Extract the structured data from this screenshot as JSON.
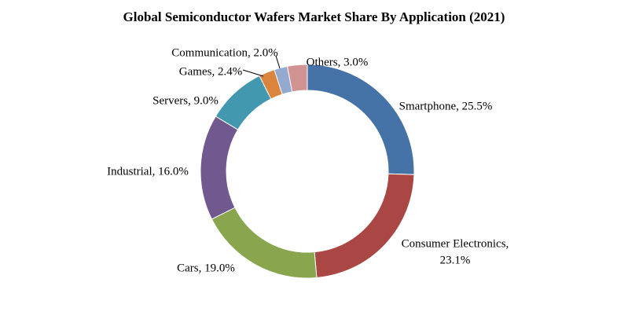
{
  "chart_data": {
    "type": "pie",
    "variant": "donut",
    "title": "Global Semiconductor Wafers Market Share By Application (2021)",
    "start_angle_deg": 0,
    "direction": "clockwise",
    "slices": [
      {
        "name": "Smartphone",
        "value": 25.5,
        "label": "Smartphone, 25.5%",
        "color": "#4572A7"
      },
      {
        "name": "Consumer Electronics",
        "value": 23.1,
        "label": "Consumer Electronics,|23.1%",
        "color": "#AA4643"
      },
      {
        "name": "Cars",
        "value": 19.0,
        "label": "Cars, 19.0%",
        "color": "#89A54E"
      },
      {
        "name": "Industrial",
        "value": 16.0,
        "label": "Industrial, 16.0%",
        "color": "#71588F"
      },
      {
        "name": "Servers",
        "value": 9.0,
        "label": "Servers, 9.0%",
        "color": "#4198AF"
      },
      {
        "name": "Games",
        "value": 2.4,
        "label": "Games, 2.4%",
        "color": "#DB843D"
      },
      {
        "name": "Communication",
        "value": 2.0,
        "label": "Communication, 2.0%",
        "color": "#93A9CF"
      },
      {
        "name": "Others",
        "value": 3.0,
        "label": "Others, 3.0%",
        "color": "#D19392"
      }
    ]
  }
}
